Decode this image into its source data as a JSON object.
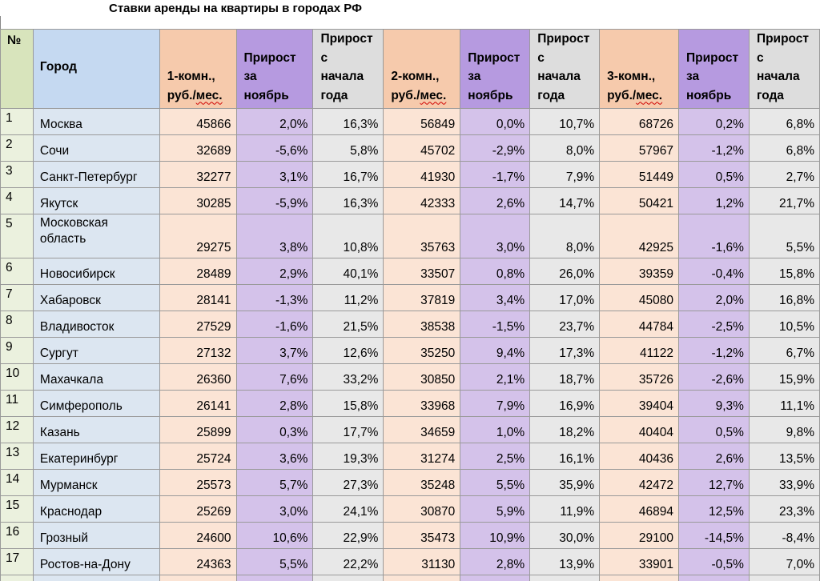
{
  "title": "Ставки аренды на квартиры в городах РФ",
  "headers": {
    "num": "№",
    "city": "Город",
    "col1": "1-комн., руб./мес.",
    "col2": "Прирост за ноябрь",
    "col3": "Прирост с начала года",
    "col4": "2-комн., руб./мес.",
    "col5": "Прирост за ноябрь",
    "col6": "Прирост с начала года",
    "col7": "3-комн., руб./мес.",
    "col8": "Прирост за ноябрь",
    "col9": "Прирост с начала года"
  },
  "rows": [
    [
      "1",
      "Москва",
      "45866",
      "2,0%",
      "16,3%",
      "56849",
      "0,0%",
      "10,7%",
      "68726",
      "0,2%",
      "6,8%"
    ],
    [
      "2",
      "Сочи",
      "32689",
      "-5,6%",
      "5,8%",
      "45702",
      "-2,9%",
      "8,0%",
      "57967",
      "-1,2%",
      "6,8%"
    ],
    [
      "3",
      "Санкт-Петербург",
      "32277",
      "3,1%",
      "16,7%",
      "41930",
      "-1,7%",
      "7,9%",
      "51449",
      "0,5%",
      "2,7%"
    ],
    [
      "4",
      "Якутск",
      "30285",
      "-5,9%",
      "16,3%",
      "42333",
      "2,6%",
      "14,7%",
      "50421",
      "1,2%",
      "21,7%"
    ],
    [
      "5",
      "Московская область",
      "29275",
      "3,8%",
      "10,8%",
      "35763",
      "3,0%",
      "8,0%",
      "42925",
      "-1,6%",
      "5,5%"
    ],
    [
      "6",
      "Новосибирск",
      "28489",
      "2,9%",
      "40,1%",
      "33507",
      "0,8%",
      "26,0%",
      "39359",
      "-0,4%",
      "15,8%"
    ],
    [
      "7",
      "Хабаровск",
      "28141",
      "-1,3%",
      "11,2%",
      "37819",
      "3,4%",
      "17,0%",
      "45080",
      "2,0%",
      "16,8%"
    ],
    [
      "8",
      "Владивосток",
      "27529",
      "-1,6%",
      "21,5%",
      "38538",
      "-1,5%",
      "23,7%",
      "44784",
      "-2,5%",
      "10,5%"
    ],
    [
      "9",
      "Сургут",
      "27132",
      "3,7%",
      "12,6%",
      "35250",
      "9,4%",
      "17,3%",
      "41122",
      "-1,2%",
      "6,7%"
    ],
    [
      "10",
      "Махачкала",
      "26360",
      "7,6%",
      "33,2%",
      "30850",
      "2,1%",
      "18,7%",
      "35726",
      "-2,6%",
      "15,9%"
    ],
    [
      "11",
      "Симферополь",
      "26141",
      "2,8%",
      "15,8%",
      "33968",
      "7,9%",
      "16,9%",
      "39404",
      "9,3%",
      "11,1%"
    ],
    [
      "12",
      "Казань",
      "25899",
      "0,3%",
      "17,7%",
      "34659",
      "1,0%",
      "18,2%",
      "40404",
      "0,5%",
      "9,8%"
    ],
    [
      "13",
      "Екатеринбург",
      "25724",
      "3,6%",
      "19,3%",
      "31274",
      "2,5%",
      "16,1%",
      "40436",
      "2,6%",
      "13,5%"
    ],
    [
      "14",
      "Мурманск",
      "25573",
      "5,7%",
      "27,3%",
      "35248",
      "5,5%",
      "35,9%",
      "42472",
      "12,7%",
      "33,9%"
    ],
    [
      "15",
      "Краснодар",
      "25269",
      "3,0%",
      "24,1%",
      "30870",
      "5,9%",
      "11,9%",
      "46894",
      "12,5%",
      "23,3%"
    ],
    [
      "16",
      "Грозный",
      "24600",
      "10,6%",
      "22,9%",
      "35473",
      "10,9%",
      "30,0%",
      "29100",
      "-14,5%",
      "-8,4%"
    ],
    [
      "17",
      "Ростов-на-Дону",
      "24363",
      "5,5%",
      "22,2%",
      "31130",
      "2,8%",
      "13,9%",
      "33901",
      "-0,5%",
      "7,0%"
    ]
  ]
}
